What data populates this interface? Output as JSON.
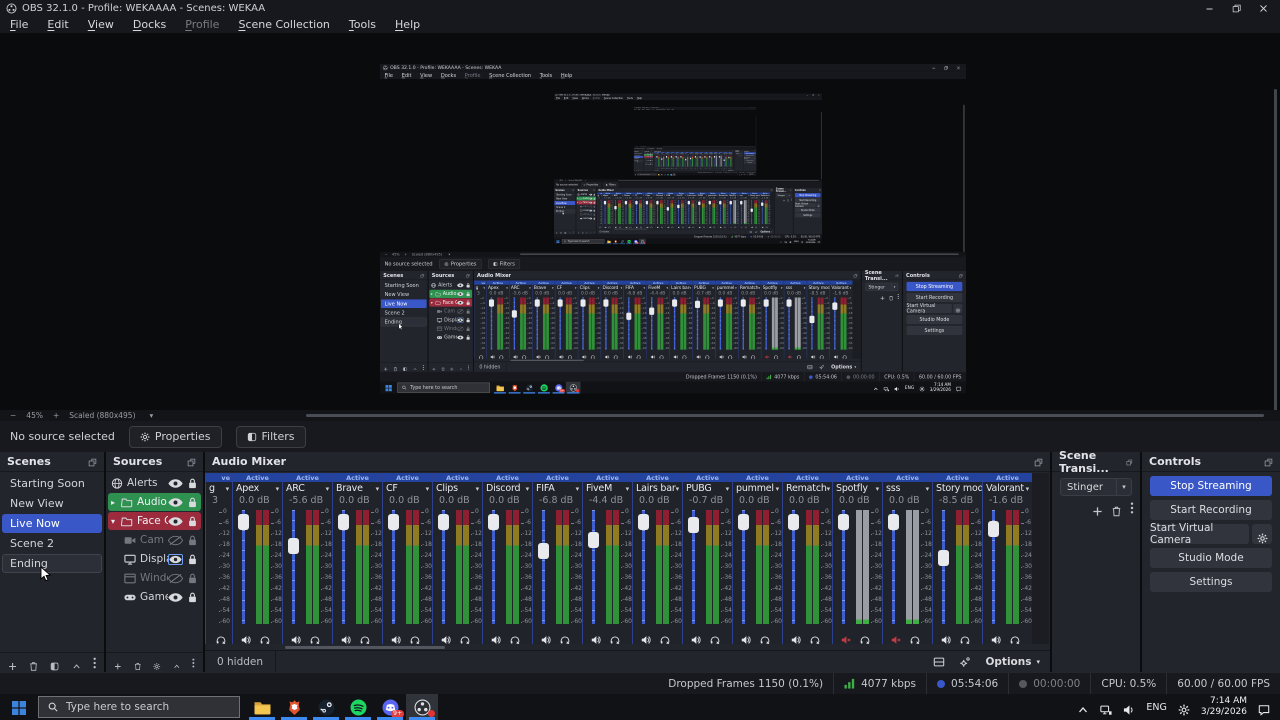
{
  "window": {
    "title": "OBS 32.1.0 - Profile: WEKAAAA - Scenes: WEKAA",
    "controls": [
      {
        "icon": "minimize-icon",
        "name": "minimize-button"
      },
      {
        "icon": "restore-icon",
        "name": "restore-button"
      },
      {
        "icon": "close-icon",
        "name": "close-button"
      }
    ]
  },
  "menu": {
    "items": [
      "File",
      "Edit",
      "View",
      "Docks",
      "Profile",
      "Scene Collection",
      "Tools",
      "Help"
    ],
    "disabled_item": "Profile"
  },
  "preview": {
    "zoom_out": "−",
    "zoom_level": "45%",
    "zoom_in": "+",
    "scaled_label": "Scaled (880x495)",
    "caret": "▾"
  },
  "source_bar": {
    "status": "No source selected",
    "properties_label": "Properties",
    "filters_label": "Filters"
  },
  "scenes": {
    "title": "Scenes",
    "items": [
      {
        "label": "Starting Soon",
        "state": "normal"
      },
      {
        "label": "New View",
        "state": "normal"
      },
      {
        "label": "Live Now",
        "state": "selected"
      },
      {
        "label": "Scene 2",
        "state": "normal"
      },
      {
        "label": "Ending",
        "state": "hover"
      }
    ],
    "toolbar": [
      {
        "icon": "plus-icon",
        "name": "add-scene-button"
      },
      {
        "icon": "trash-icon",
        "name": "remove-scene-button"
      },
      {
        "icon": "filters-icon",
        "name": "scene-filters-button"
      },
      {
        "icon": "chevron-up-icon",
        "name": "move-scene-up-button"
      },
      {
        "icon": "kebab-icon",
        "name": "scenes-overflow-button"
      }
    ]
  },
  "sources": {
    "title": "Sources",
    "items": [
      {
        "label": "Alerts",
        "icon": "browser-source-icon",
        "eye": "visible",
        "lock": "locked",
        "style": "normal",
        "child": false,
        "caret": ""
      },
      {
        "label": "Audio",
        "icon": "folder-icon",
        "eye": "visible",
        "lock": "locked",
        "style": "group-green",
        "child": false,
        "caret": "▸"
      },
      {
        "label": "Face C",
        "icon": "folder-icon",
        "eye": "visible",
        "lock": "locked",
        "style": "group-red",
        "child": false,
        "caret": "▾"
      },
      {
        "label": "Cam",
        "icon": "camera-icon",
        "eye": "hidden",
        "lock": "locked",
        "style": "dimmed",
        "child": true,
        "caret": ""
      },
      {
        "label": "Display Ca",
        "icon": "display-icon",
        "eye": "visible-focused",
        "lock": "locked",
        "style": "normal",
        "child": true,
        "caret": ""
      },
      {
        "label": "Window C",
        "icon": "window-icon",
        "eye": "hidden",
        "lock": "locked",
        "style": "dimmed",
        "child": true,
        "caret": ""
      },
      {
        "label": "Game Cap",
        "icon": "gamepad-icon",
        "eye": "visible",
        "lock": "locked",
        "style": "normal",
        "child": true,
        "caret": ""
      }
    ],
    "toolbar": [
      {
        "icon": "plus-icon",
        "name": "add-source-button"
      },
      {
        "icon": "trash-icon",
        "name": "remove-source-button"
      },
      {
        "icon": "gear-icon",
        "name": "source-properties-button"
      },
      {
        "icon": "chevron-up-icon",
        "name": "move-source-up-button"
      },
      {
        "icon": "kebab-icon",
        "name": "sources-overflow-button"
      }
    ]
  },
  "mixer": {
    "title": "Audio Mixer",
    "active_label": "Active",
    "scale": [
      "0",
      "-6",
      "-12",
      "-18",
      "-24",
      "-30",
      "-36",
      "-42",
      "-48",
      "-54",
      "-60"
    ],
    "clipped": {
      "active_fragment": "ve",
      "name_fragment": "g",
      "db_fragment": "3"
    },
    "channels": [
      {
        "name": "Apex",
        "db": "0.0 dB",
        "muted": false
      },
      {
        "name": "ARC",
        "db": "-5.6 dB",
        "muted": false
      },
      {
        "name": "Brave",
        "db": "0.0 dB",
        "muted": false
      },
      {
        "name": "CF",
        "db": "0.0 dB",
        "muted": false
      },
      {
        "name": "Clips",
        "db": "0.0 dB",
        "muted": false
      },
      {
        "name": "Discord",
        "db": "0.0 dB",
        "muted": false
      },
      {
        "name": "FIFA",
        "db": "-6.8 dB",
        "muted": false
      },
      {
        "name": "FiveM",
        "db": "-4.4 dB",
        "muted": false
      },
      {
        "name": "Lairs bar",
        "db": "0.0 dB",
        "muted": false
      },
      {
        "name": "PUBG",
        "db": "-0.7 dB",
        "muted": false
      },
      {
        "name": "pummel",
        "db": "0.0 dB",
        "muted": false
      },
      {
        "name": "Rematch",
        "db": "0.0 dB",
        "muted": false
      },
      {
        "name": "Spotfly",
        "db": "0.0 dB",
        "muted": true
      },
      {
        "name": "sss",
        "db": "0.0 dB",
        "muted": true
      },
      {
        "name": "Story mode",
        "db": "-8.5 dB",
        "muted": false
      },
      {
        "name": "Valorant",
        "db": "-1.6 dB",
        "muted": false
      }
    ],
    "hidden_label": "0 hidden",
    "options_label": "Options",
    "footer_icons": [
      {
        "icon": "rows-icon",
        "name": "mixer-layout-button"
      },
      {
        "icon": "dual-gear-icon",
        "name": "advanced-audio-button"
      }
    ]
  },
  "transitions": {
    "title": "Scene Transi...",
    "selected": "Stinger",
    "toolbar": [
      {
        "icon": "plus-icon",
        "name": "add-transition-button"
      },
      {
        "icon": "trash-icon",
        "name": "remove-transition-button"
      },
      {
        "icon": "kebab-icon",
        "name": "transition-overflow-button"
      }
    ]
  },
  "controls": {
    "title": "Controls",
    "buttons": [
      {
        "label": "Stop Streaming",
        "style": "primary",
        "name": "stop-streaming-button"
      },
      {
        "label": "Start Recording",
        "style": "normal",
        "name": "start-recording-button"
      },
      {
        "label": "Start Virtual Camera",
        "style": "normal",
        "name": "start-virtual-camera-button",
        "gear": true
      },
      {
        "label": "Studio Mode",
        "style": "normal",
        "name": "studio-mode-button"
      },
      {
        "label": "Settings",
        "style": "normal",
        "name": "settings-button"
      }
    ]
  },
  "statusbar": {
    "segments": [
      {
        "text": "Dropped Frames 1150 (0.1%)",
        "icon": "",
        "name": "dropped-frames-status"
      },
      {
        "text": "4077 kbps",
        "icon": "signal-bars-icon",
        "name": "bitrate-status"
      },
      {
        "text": "05:54:06",
        "icon": "stream-dot-icon",
        "name": "stream-time-status"
      },
      {
        "text": "00:00:00",
        "icon": "record-dot-icon",
        "dim": true,
        "name": "record-time-status"
      },
      {
        "text": "CPU: 0.5%",
        "icon": "",
        "name": "cpu-status"
      },
      {
        "text": "60.00 / 60.00 FPS",
        "icon": "",
        "name": "fps-status"
      }
    ]
  },
  "taskbar": {
    "search_placeholder": "Type here to search",
    "apps": [
      {
        "icon": "explorer-icon",
        "name": "taskbar-file-explorer",
        "badge": "",
        "dot": false,
        "active": false
      },
      {
        "icon": "brave-icon",
        "name": "taskbar-brave",
        "badge": "",
        "dot": false,
        "active": false
      },
      {
        "icon": "steam-icon",
        "name": "taskbar-steam",
        "badge": "",
        "dot": false,
        "active": false
      },
      {
        "icon": "spotify-icon",
        "name": "taskbar-spotify",
        "badge": "",
        "dot": false,
        "active": false
      },
      {
        "icon": "discord-icon",
        "name": "taskbar-discord",
        "badge": "9+",
        "dot": false,
        "active": false
      },
      {
        "icon": "obs-app-icon",
        "name": "taskbar-obs",
        "badge": "",
        "dot": true,
        "active": true
      }
    ],
    "tray": [
      {
        "icon": "chevron-up-icon",
        "text": "",
        "name": "tray-expand"
      },
      {
        "icon": "network-icon",
        "text": "",
        "name": "tray-network"
      },
      {
        "icon": "volume-icon",
        "text": "",
        "name": "tray-volume"
      },
      {
        "icon": "",
        "text": "ENG",
        "name": "tray-language"
      },
      {
        "icon": "gear-icon",
        "text": "",
        "name": "tray-settings"
      }
    ],
    "clock": {
      "time": "7:14 AM",
      "date": "3/29/2026"
    }
  }
}
